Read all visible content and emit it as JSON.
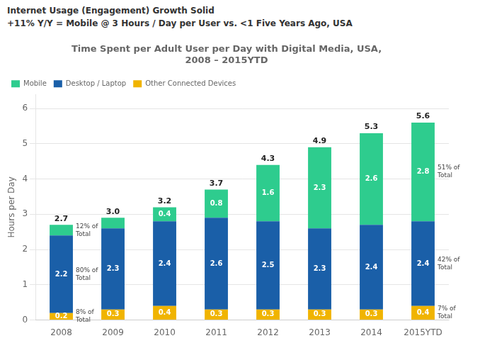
{
  "chart_data": {
    "type": "bar",
    "stacked": true,
    "subtitle": [
      "Internet Usage (Engagement) Growth Solid",
      "+11% Y/Y = Mobile @ 3 Hours / Day per User vs. <1  Five Years Ago, USA"
    ],
    "title": "Time Spent per Adult User per Day with Digital Media, USA,\n2008 – 2015YTD",
    "ylabel": "Hours per Day",
    "categories": [
      "2008",
      "2009",
      "2010",
      "2011",
      "2012",
      "2013",
      "2014",
      "2015YTD"
    ],
    "series": [
      {
        "name": "Other Connected Devices",
        "color": "#f0b400",
        "values": [
          0.2,
          0.3,
          0.4,
          0.3,
          0.3,
          0.3,
          0.3,
          0.4
        ]
      },
      {
        "name": "Desktop / Laptop",
        "color": "#1a5fa8",
        "values": [
          2.2,
          2.3,
          2.4,
          2.6,
          2.5,
          2.3,
          2.4,
          2.4
        ]
      },
      {
        "name": "Mobile",
        "color": "#2ecc8e",
        "values": [
          0.3,
          0.3,
          0.4,
          0.8,
          1.6,
          2.3,
          2.6,
          2.8
        ],
        "value_labels": [
          null,
          null,
          "0.4",
          "0.8",
          "1.6",
          "2.3",
          "2.6",
          "2.8"
        ]
      }
    ],
    "totals": {
      "values": [
        2.7,
        3.0,
        3.2,
        3.7,
        4.3,
        4.9,
        5.3,
        5.6
      ],
      "value_labels": [
        "2.7",
        "3.0",
        "3.2",
        "3.7",
        "4.3",
        "4.9",
        "5.3",
        "5.6"
      ]
    },
    "annotations": [
      {
        "category": "2008",
        "series": "Mobile",
        "text": "12% of\nTotal"
      },
      {
        "category": "2008",
        "series": "Desktop / Laptop",
        "text": "80% of\nTotal"
      },
      {
        "category": "2008",
        "series": "Other Connected Devices",
        "text": "8% of\nTotal"
      },
      {
        "category": "2015YTD",
        "series": "Mobile",
        "text": "51% of\nTotal"
      },
      {
        "category": "2015YTD",
        "series": "Desktop / Laptop",
        "text": "42% of\nTotal"
      },
      {
        "category": "2015YTD",
        "series": "Other Connected Devices",
        "text": "7% of\nTotal"
      }
    ],
    "ylim": [
      0,
      6.4
    ],
    "yticks": [
      0,
      1,
      2,
      3,
      4,
      5,
      6
    ],
    "grid": true,
    "legend": "upper left",
    "data_labels": true
  }
}
